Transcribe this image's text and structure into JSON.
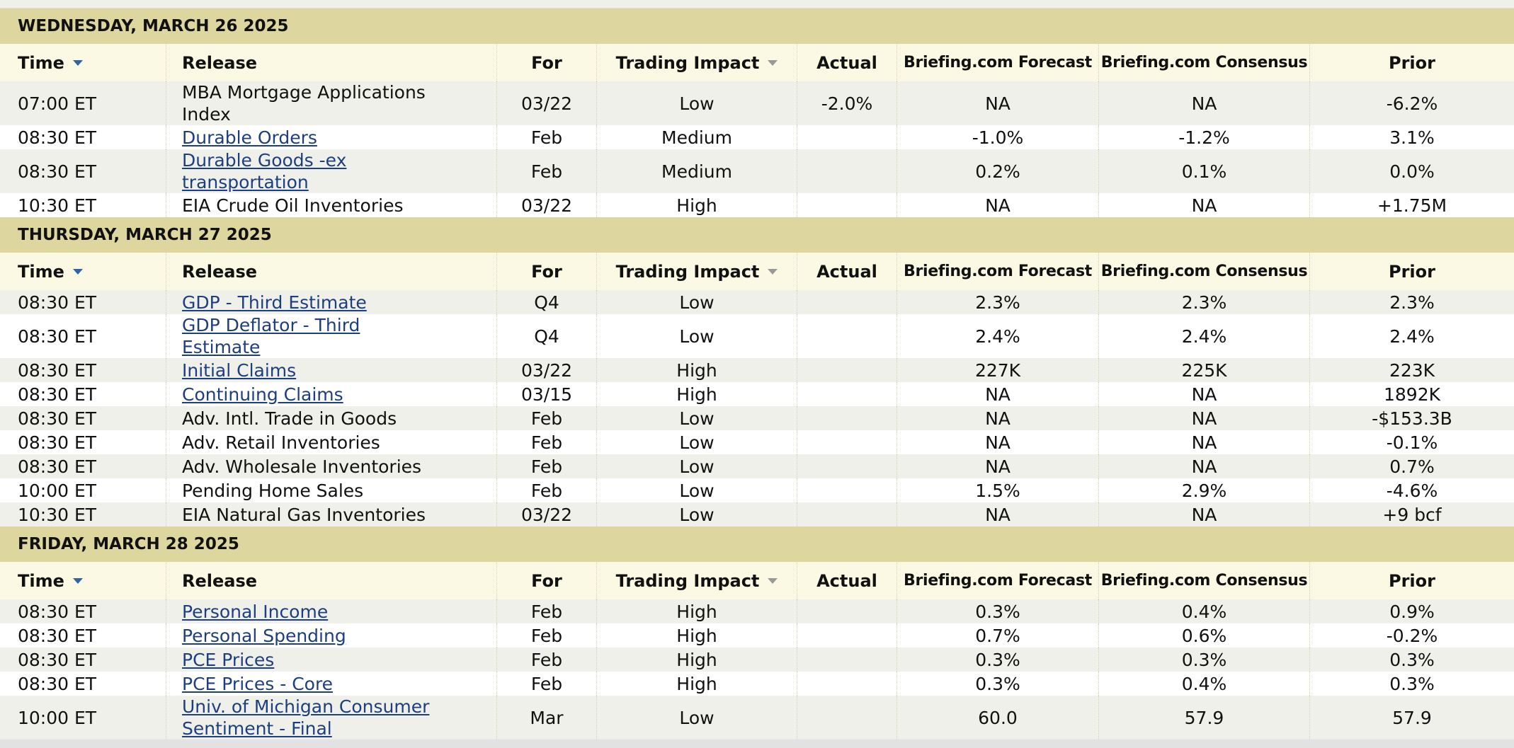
{
  "days": [
    {
      "title": "WEDNESDAY, MARCH 26 2025",
      "columns": [
        "Time",
        "Release",
        "For",
        "Trading Impact",
        "Actual",
        "Briefing.com Forecast",
        "Briefing.com Consensus",
        "Prior"
      ],
      "linked": [
        false,
        true,
        true,
        false
      ],
      "rows": [
        [
          "07:00 ET",
          "MBA Mortgage Applications Index",
          "03/22",
          "Low",
          "-2.0%",
          "NA",
          "NA",
          "-6.2%"
        ],
        [
          "08:30 ET",
          "Durable Orders",
          "Feb",
          "Medium",
          null,
          "-1.0%",
          "-1.2%",
          "3.1%"
        ],
        [
          "08:30 ET",
          "Durable Goods -ex transportation",
          "Feb",
          "Medium",
          null,
          "0.2%",
          "0.1%",
          "0.0%"
        ],
        [
          "10:30 ET",
          "EIA Crude Oil Inventories",
          "03/22",
          "High",
          null,
          "NA",
          "NA",
          "+1.75M"
        ]
      ]
    },
    {
      "title": "THURSDAY, MARCH 27 2025",
      "columns": [
        "Time",
        "Release",
        "For",
        "Trading Impact",
        "Actual",
        "Briefing.com Forecast",
        "Briefing.com Consensus",
        "Prior"
      ],
      "linked": [
        true,
        true,
        true,
        true,
        false,
        false,
        false,
        false,
        false
      ],
      "rows": [
        [
          "08:30 ET",
          "GDP - Third Estimate",
          "Q4",
          "Low",
          null,
          "2.3%",
          "2.3%",
          "2.3%"
        ],
        [
          "08:30 ET",
          "GDP Deflator - Third Estimate",
          "Q4",
          "Low",
          null,
          "2.4%",
          "2.4%",
          "2.4%"
        ],
        [
          "08:30 ET",
          "Initial Claims",
          "03/22",
          "High",
          null,
          "227K",
          "225K",
          "223K"
        ],
        [
          "08:30 ET",
          "Continuing Claims",
          "03/15",
          "High",
          null,
          "NA",
          "NA",
          "1892K"
        ],
        [
          "08:30 ET",
          "Adv. Intl. Trade in Goods",
          "Feb",
          "Low",
          null,
          "NA",
          "NA",
          "-$153.3B"
        ],
        [
          "08:30 ET",
          "Adv. Retail Inventories",
          "Feb",
          "Low",
          null,
          "NA",
          "NA",
          "-0.1%"
        ],
        [
          "08:30 ET",
          "Adv. Wholesale Inventories",
          "Feb",
          "Low",
          null,
          "NA",
          "NA",
          "0.7%"
        ],
        [
          "10:00 ET",
          "Pending Home Sales",
          "Feb",
          "Low",
          null,
          "1.5%",
          "2.9%",
          "-4.6%"
        ],
        [
          "10:30 ET",
          "EIA Natural Gas Inventories",
          "03/22",
          "Low",
          null,
          "NA",
          "NA",
          "+9 bcf"
        ]
      ]
    },
    {
      "title": "FRIDAY, MARCH 28 2025",
      "columns": [
        "Time",
        "Release",
        "For",
        "Trading Impact",
        "Actual",
        "Briefing.com Forecast",
        "Briefing.com Consensus",
        "Prior"
      ],
      "linked": [
        true,
        true,
        true,
        true,
        true
      ],
      "rows": [
        [
          "08:30 ET",
          "Personal Income",
          "Feb",
          "High",
          null,
          "0.3%",
          "0.4%",
          "0.9%"
        ],
        [
          "08:30 ET",
          "Personal Spending",
          "Feb",
          "High",
          null,
          "0.7%",
          "0.6%",
          "-0.2%"
        ],
        [
          "08:30 ET",
          "PCE Prices",
          "Feb",
          "High",
          null,
          "0.3%",
          "0.3%",
          "0.3%"
        ],
        [
          "08:30 ET",
          "PCE Prices - Core",
          "Feb",
          "High",
          null,
          "0.3%",
          "0.4%",
          "0.3%"
        ],
        [
          "10:00 ET",
          "Univ. of Michigan Consumer Sentiment - Final",
          "Mar",
          "Low",
          null,
          "60.0",
          "57.9",
          "57.9"
        ]
      ]
    }
  ]
}
